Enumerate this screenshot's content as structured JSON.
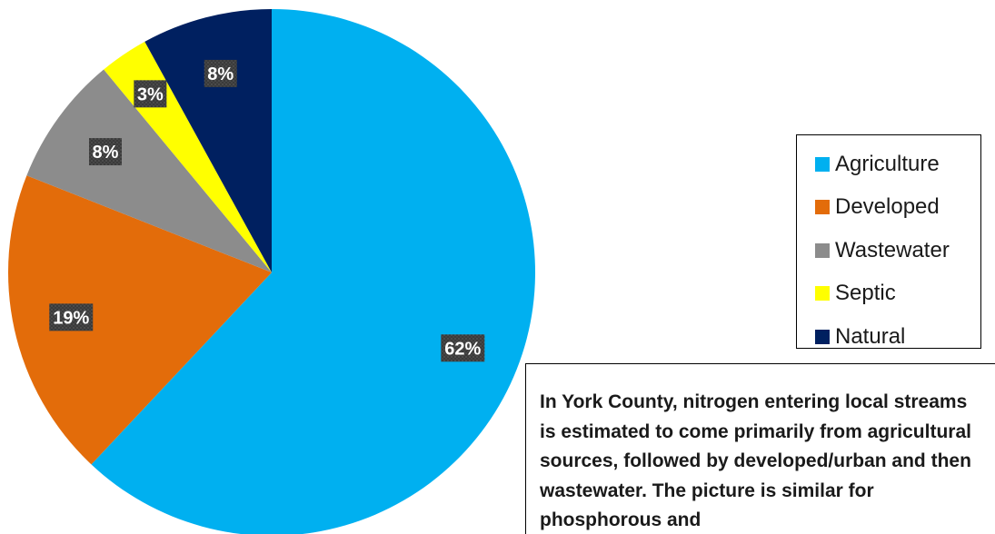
{
  "chart_data": {
    "type": "pie",
    "start_angle_deg": 0,
    "direction": "clockwise",
    "slices": [
      {
        "name": "Agriculture",
        "value": 62,
        "label": "62%",
        "color": "#00B0F0"
      },
      {
        "name": "Developed",
        "value": 19,
        "label": "19%",
        "color": "#E36C0A"
      },
      {
        "name": "Wastewater",
        "value": 8,
        "label": "8%",
        "color": "#8C8C8C"
      },
      {
        "name": "Septic",
        "value": 3,
        "label": "3%",
        "color": "#FFFF00"
      },
      {
        "name": "Natural",
        "value": 8,
        "label": "8%",
        "color": "#002060"
      }
    ],
    "legend_position": "right",
    "data_label_background": "#3F3F3F"
  },
  "legend": {
    "items": [
      {
        "label": "Agriculture",
        "color": "#00B0F0"
      },
      {
        "label": "Developed",
        "color": "#E36C0A"
      },
      {
        "label": "Wastewater",
        "color": "#8C8C8C"
      },
      {
        "label": "Septic",
        "color": "#FFFF00"
      },
      {
        "label": "Natural",
        "color": "#002060"
      }
    ]
  },
  "note": {
    "text": "In York County, nitrogen entering local streams is estimated to come primarily from agricultural sources, followed by developed/urban and then wastewater. The picture is similar for phosphorous and"
  }
}
